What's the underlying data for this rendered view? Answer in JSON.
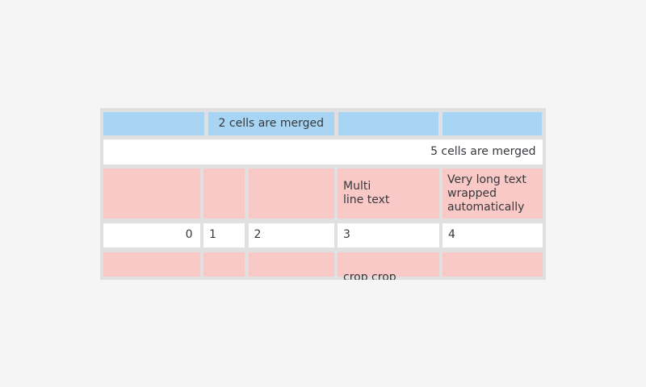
{
  "colors": {
    "page_bg": "#f5f5f5",
    "frame_gray": "#e0e0e0",
    "header_blue": "#a8d5f4",
    "highlight_pink": "#f9c9c7",
    "cell_white": "#ffffff",
    "text": "#36383c"
  },
  "table": {
    "rows": [
      {
        "cells": [
          {
            "text": ""
          },
          {
            "text": "2 cells are merged"
          },
          {
            "text": ""
          },
          {
            "text": ""
          }
        ]
      },
      {
        "cells": [
          {
            "text": "5 cells are merged"
          }
        ]
      },
      {
        "cells": [
          {
            "text": ""
          },
          {
            "text": ""
          },
          {
            "text": ""
          },
          {
            "text": "Multi\nline text"
          },
          {
            "text": "Very long text wrapped automatically"
          }
        ]
      },
      {
        "cells": [
          {
            "text": "0"
          },
          {
            "text": "1"
          },
          {
            "text": "2"
          },
          {
            "text": "3"
          },
          {
            "text": "4"
          }
        ]
      },
      {
        "cells": [
          {
            "text": ""
          },
          {
            "text": ""
          },
          {
            "text": ""
          },
          {
            "text": "crop crop\ncrop crop"
          },
          {
            "text": ""
          }
        ]
      }
    ]
  }
}
